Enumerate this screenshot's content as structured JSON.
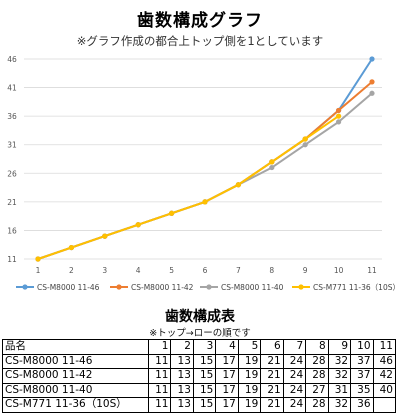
{
  "header": {
    "title": "歯数構成グラフ",
    "subtitle": "※グラフ作成の都合上トップ側を1としています"
  },
  "chart_data": {
    "type": "line",
    "title": "",
    "xlabel": "",
    "ylabel": "",
    "x": [
      1,
      2,
      3,
      4,
      5,
      6,
      7,
      8,
      9,
      10,
      11
    ],
    "xlim": [
      1,
      11
    ],
    "ylim": [
      11,
      46
    ],
    "yticks": [
      11,
      16,
      21,
      26,
      31,
      36,
      41,
      46
    ],
    "grid": "horizontal",
    "legend_position": "bottom",
    "series": [
      {
        "name": "CS-M8000 11-46",
        "color": "#5b9bd5",
        "values": [
          11,
          13,
          15,
          17,
          19,
          21,
          24,
          28,
          32,
          37,
          46
        ]
      },
      {
        "name": "CS-M8000 11-42",
        "color": "#ed7d31",
        "values": [
          11,
          13,
          15,
          17,
          19,
          21,
          24,
          28,
          32,
          37,
          42
        ]
      },
      {
        "name": "CS-M8000 11-40",
        "color": "#a5a5a5",
        "values": [
          11,
          13,
          15,
          17,
          19,
          21,
          24,
          27,
          31,
          35,
          40
        ]
      },
      {
        "name": "CS-M771 11-36（10S）",
        "color": "#ffc000",
        "values": [
          11,
          13,
          15,
          17,
          19,
          21,
          24,
          28,
          32,
          36,
          null
        ]
      }
    ]
  },
  "table": {
    "title": "歯数構成表",
    "note": "※トップ→ローの順です",
    "header_label": "品名",
    "columns": [
      "1",
      "2",
      "3",
      "4",
      "5",
      "6",
      "7",
      "8",
      "9",
      "10",
      "11"
    ],
    "rows": [
      {
        "model": "CS-M8000 11-46",
        "cells": [
          "11",
          "13",
          "15",
          "17",
          "19",
          "21",
          "24",
          "28",
          "32",
          "37",
          "46"
        ]
      },
      {
        "model": "CS-M8000 11-42",
        "cells": [
          "11",
          "13",
          "15",
          "17",
          "19",
          "21",
          "24",
          "28",
          "32",
          "37",
          "42"
        ]
      },
      {
        "model": "CS-M8000 11-40",
        "cells": [
          "11",
          "13",
          "15",
          "17",
          "19",
          "21",
          "24",
          "27",
          "31",
          "35",
          "40"
        ]
      },
      {
        "model": "CS-M771 11-36（10S）",
        "cells": [
          "11",
          "13",
          "15",
          "17",
          "19",
          "21",
          "24",
          "28",
          "32",
          "36",
          ""
        ]
      }
    ]
  }
}
